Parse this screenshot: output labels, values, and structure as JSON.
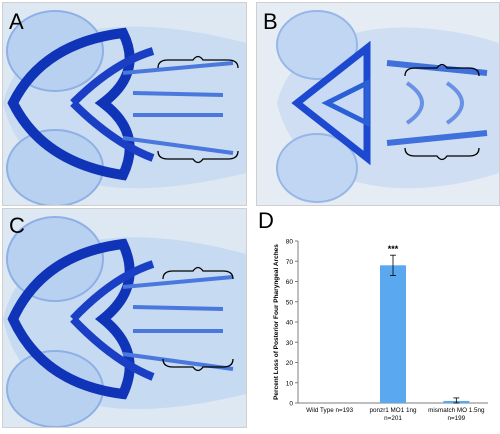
{
  "panels": {
    "a": {
      "label": "A"
    },
    "b": {
      "label": "B"
    },
    "c": {
      "label": "C"
    },
    "d": {
      "label": "D"
    }
  },
  "colors": {
    "stain": "#2a5fd6",
    "stain_dark": "#1034b8",
    "tissue": "#cfe0f5",
    "bar": "#5aa8ef",
    "axis": "#7f7f7f"
  },
  "chart_data": {
    "type": "bar",
    "ylabel": "Percent Loss of Posterior Four Pharyngeal Arches",
    "categories": [
      "Wild Type n=193",
      "ponzr1 MO1 1ng n=201",
      "mismatch MO 1.5ng n=199"
    ],
    "category_lines": [
      [
        "Wild Type n=193"
      ],
      [
        "ponzr1 MO1 1ng",
        "n=201"
      ],
      [
        "mismatch MO 1.5ng",
        "n=199"
      ]
    ],
    "values": [
      0,
      68,
      1
    ],
    "error": [
      0,
      5,
      1.5
    ],
    "annotations": [
      "",
      "***",
      ""
    ],
    "ylim": [
      0,
      80
    ],
    "yticks": [
      0,
      10,
      20,
      30,
      40,
      50,
      60,
      70,
      80
    ],
    "grid": false
  }
}
